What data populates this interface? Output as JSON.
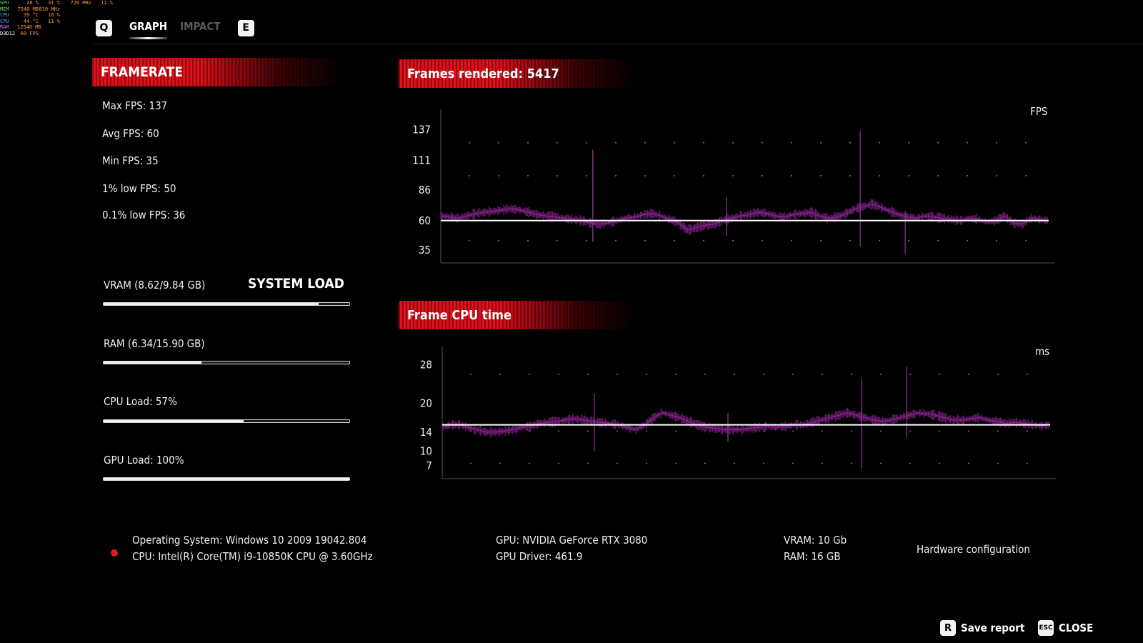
{
  "osd": {
    "rows": [
      {
        "name": "GPU",
        "v1": "20",
        "u1": "%",
        "v2": "31",
        "u2": "%",
        "v3": "720",
        "u3": "MHz",
        "v4": "11",
        "u4": "%"
      },
      {
        "name": "MEM",
        "v1": "7540",
        "u1": "MB",
        "v2": "810",
        "u2": "MHz",
        "v3": "",
        "u3": "",
        "v4": "",
        "u4": ""
      },
      {
        "name": "CPU",
        "v1": "39",
        "u1": "°C",
        "v2": "16",
        "u2": "%",
        "v3": "",
        "u3": "",
        "v4": "",
        "u4": ""
      },
      {
        "name": "CPU",
        "v1": "44",
        "u1": "°C",
        "v2": "11",
        "u2": "%",
        "v3": "",
        "u3": "",
        "v4": "",
        "u4": ""
      },
      {
        "name": "RAM",
        "v1": "12540",
        "u1": "MB",
        "v2": "",
        "u2": "",
        "v3": "",
        "u3": "",
        "v4": "",
        "u4": ""
      },
      {
        "name": "D3D12",
        "v1": "60",
        "u1": "FPS",
        "v2": "",
        "u2": "",
        "v3": "",
        "u3": "",
        "v4": "",
        "u4": ""
      }
    ]
  },
  "tabs": {
    "key_prev": "Q",
    "graph": "GRAPH",
    "impact": "IMPACT",
    "key_next": "E"
  },
  "framerate": {
    "title": "FRAMERATE",
    "max": "Max FPS: 137",
    "avg": "Avg FPS: 60",
    "min": "Min FPS: 35",
    "low1": "1% low FPS: 50",
    "low01": "0.1% low FPS: 36"
  },
  "system_load": {
    "title": "SYSTEM LOAD",
    "vram": {
      "label": "VRAM (8.62/9.84 GB)",
      "fraction": 0.876
    },
    "ram": {
      "label": "RAM (6.34/15.90 GB)",
      "fraction": 0.399
    },
    "cpu": {
      "label": "CPU Load: 57%",
      "fraction": 0.57
    },
    "gpu": {
      "label": "GPU Load: 100%",
      "fraction": 1.0
    }
  },
  "fps_chart": {
    "banner": "Frames rendered: 5417",
    "unit": "FPS"
  },
  "cpu_chart": {
    "banner": "Frame CPU time",
    "unit": "ms"
  },
  "chart_data": [
    {
      "type": "line",
      "title": "Frames rendered: 5417",
      "ylabel": "FPS",
      "yticks": [
        137,
        111,
        86,
        60,
        35
      ],
      "ylim": [
        29,
        147
      ],
      "average": 60,
      "grid": "dotted",
      "series": [
        {
          "values": [
            64,
            63,
            62,
            64,
            66,
            67,
            68,
            69,
            70,
            69,
            67,
            65,
            64,
            63,
            62,
            61,
            60,
            58,
            57,
            58,
            60,
            62,
            63,
            65,
            66,
            64,
            61,
            58,
            52,
            54,
            56,
            57,
            60,
            62,
            64,
            65,
            67,
            66,
            64,
            63,
            65,
            66,
            67,
            64,
            62,
            63,
            66,
            70,
            72,
            74,
            71,
            68,
            65,
            63,
            62,
            64,
            63,
            62,
            61,
            60,
            62,
            61,
            59,
            60,
            64,
            58,
            57,
            62,
            61,
            60
          ]
        }
      ]
    },
    {
      "type": "line",
      "title": "Frame CPU time",
      "ylabel": "ms",
      "yticks": [
        28,
        20,
        14,
        10,
        7
      ],
      "ylim": [
        5.5,
        30
      ],
      "average": 15.5,
      "grid": "dotted",
      "series": [
        {
          "values": [
            15,
            15.5,
            15.5,
            15,
            14.5,
            14,
            14,
            14.2,
            14.5,
            15,
            15.2,
            15.8,
            16,
            16.2,
            16.5,
            16.8,
            16.5,
            16.2,
            16,
            15.8,
            15.5,
            15,
            14.5,
            15.5,
            17,
            18,
            17.5,
            17,
            16.2,
            15.5,
            15,
            14.8,
            14.5,
            14.5,
            14.5,
            14.8,
            15,
            15.2,
            15,
            15.2,
            15.5,
            15.5,
            16,
            16.5,
            17,
            17.5,
            18,
            17.5,
            17,
            16.5,
            16.2,
            16.5,
            17,
            17.5,
            18,
            17.8,
            17.5,
            17,
            16.5,
            16.5,
            16.8,
            17,
            16.5,
            16.2,
            15.8,
            16,
            15.8,
            15.5,
            15.3,
            15.5
          ]
        }
      ]
    }
  ],
  "hardware": {
    "os": "Operating System: Windows 10 2009 19042.804",
    "cpu": "CPU: Intel(R) Core(TM) i9-10850K CPU @ 3.60GHz",
    "gpu": "GPU: NVIDIA GeForce RTX 3080",
    "gpu_driver": "GPU Driver: 461.9",
    "vram": "VRAM: 10 Gb",
    "ram": "RAM: 16 GB",
    "config_label": "Hardware configuration"
  },
  "footer": {
    "save_key": "R",
    "save_label": "Save report",
    "close_key": "ESC",
    "close_label": "CLOSE"
  },
  "colors": {
    "accent_red": "#e0101a",
    "series_purple": "#6a1a6e",
    "average_line": "#ffffff",
    "osd_orange": "#ff9a2e",
    "status_dot": "#e51a1a"
  }
}
